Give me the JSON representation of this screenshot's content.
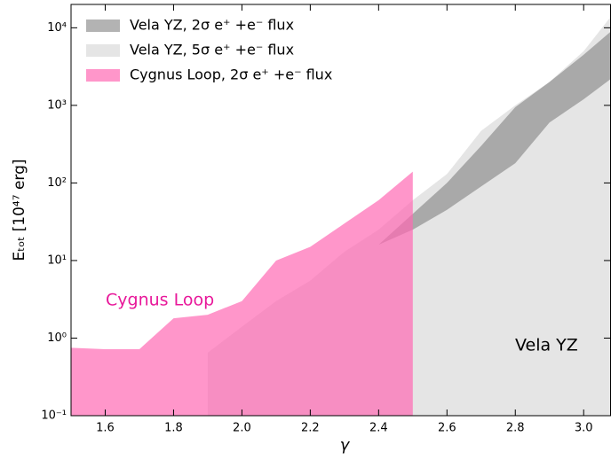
{
  "chart_data": {
    "type": "band",
    "x_label": "γ",
    "y_label": "Eₜₒₜ [10⁴⁷ erg]",
    "log_y": true,
    "xlim": [
      1.5,
      3.08
    ],
    "ylim": [
      0.1,
      20000
    ],
    "xticks": [
      1.6,
      1.8,
      {
        "value": 2,
        "label": "2.0"
      },
      2.2,
      2.4,
      2.6,
      2.8,
      {
        "value": 3,
        "label": "3.0"
      }
    ],
    "yticks": [
      {
        "value": 0.1,
        "label": "10⁻¹"
      },
      {
        "value": 1,
        "label": "10⁰"
      },
      {
        "value": 10,
        "label": "10¹"
      },
      {
        "value": 100,
        "label": "10²"
      },
      {
        "value": 1000,
        "label": "10³"
      },
      {
        "value": 10000,
        "label": "10⁴"
      }
    ],
    "legend": "upper left",
    "series": [
      {
        "name": "Vela YZ,  2σ e⁺ +e⁻  flux",
        "color": "#808080",
        "x": [
          2.4,
          2.5,
          2.6,
          2.7,
          2.8,
          2.9,
          3.0,
          3.08
        ],
        "lower": [
          16,
          25,
          45,
          90,
          180,
          600,
          1200,
          2200
        ],
        "upper": [
          16,
          40,
          100,
          300,
          950,
          2000,
          4500,
          9000
        ]
      },
      {
        "name": "Vela YZ, 5σ e⁺ +e⁻  flux",
        "color": "#d3d3d3",
        "x": [
          1.9,
          2.0,
          2.1,
          2.2,
          2.3,
          2.4,
          2.5,
          2.6,
          2.7,
          2.8,
          2.9,
          3.0,
          3.08
        ],
        "lower": [
          0.1,
          0.1,
          0.1,
          0.1,
          0.1,
          0.1,
          0.1,
          0.1,
          0.1,
          0.1,
          0.1,
          0.1,
          0.1
        ],
        "upper": [
          0.65,
          1.4,
          3,
          5.5,
          13,
          25,
          60,
          130,
          470,
          1000,
          2000,
          5000,
          14000
        ]
      },
      {
        "name": "Cygnus Loop, 2σ e⁺ +e⁻  flux",
        "color": "#ff69b4",
        "x": [
          1.5,
          1.6,
          1.7,
          1.8,
          1.9,
          2.0,
          2.1,
          2.2,
          2.3,
          2.4,
          2.5
        ],
        "lower": [
          0.1,
          0.1,
          0.1,
          0.1,
          0.1,
          0.1,
          0.1,
          0.1,
          0.1,
          0.1,
          0.1
        ],
        "upper": [
          0.75,
          0.72,
          0.72,
          1.8,
          2.0,
          3.0,
          10,
          15,
          30,
          60,
          140
        ]
      }
    ],
    "annotations": [
      "Cygnus Loop",
      "Vela YZ"
    ]
  }
}
